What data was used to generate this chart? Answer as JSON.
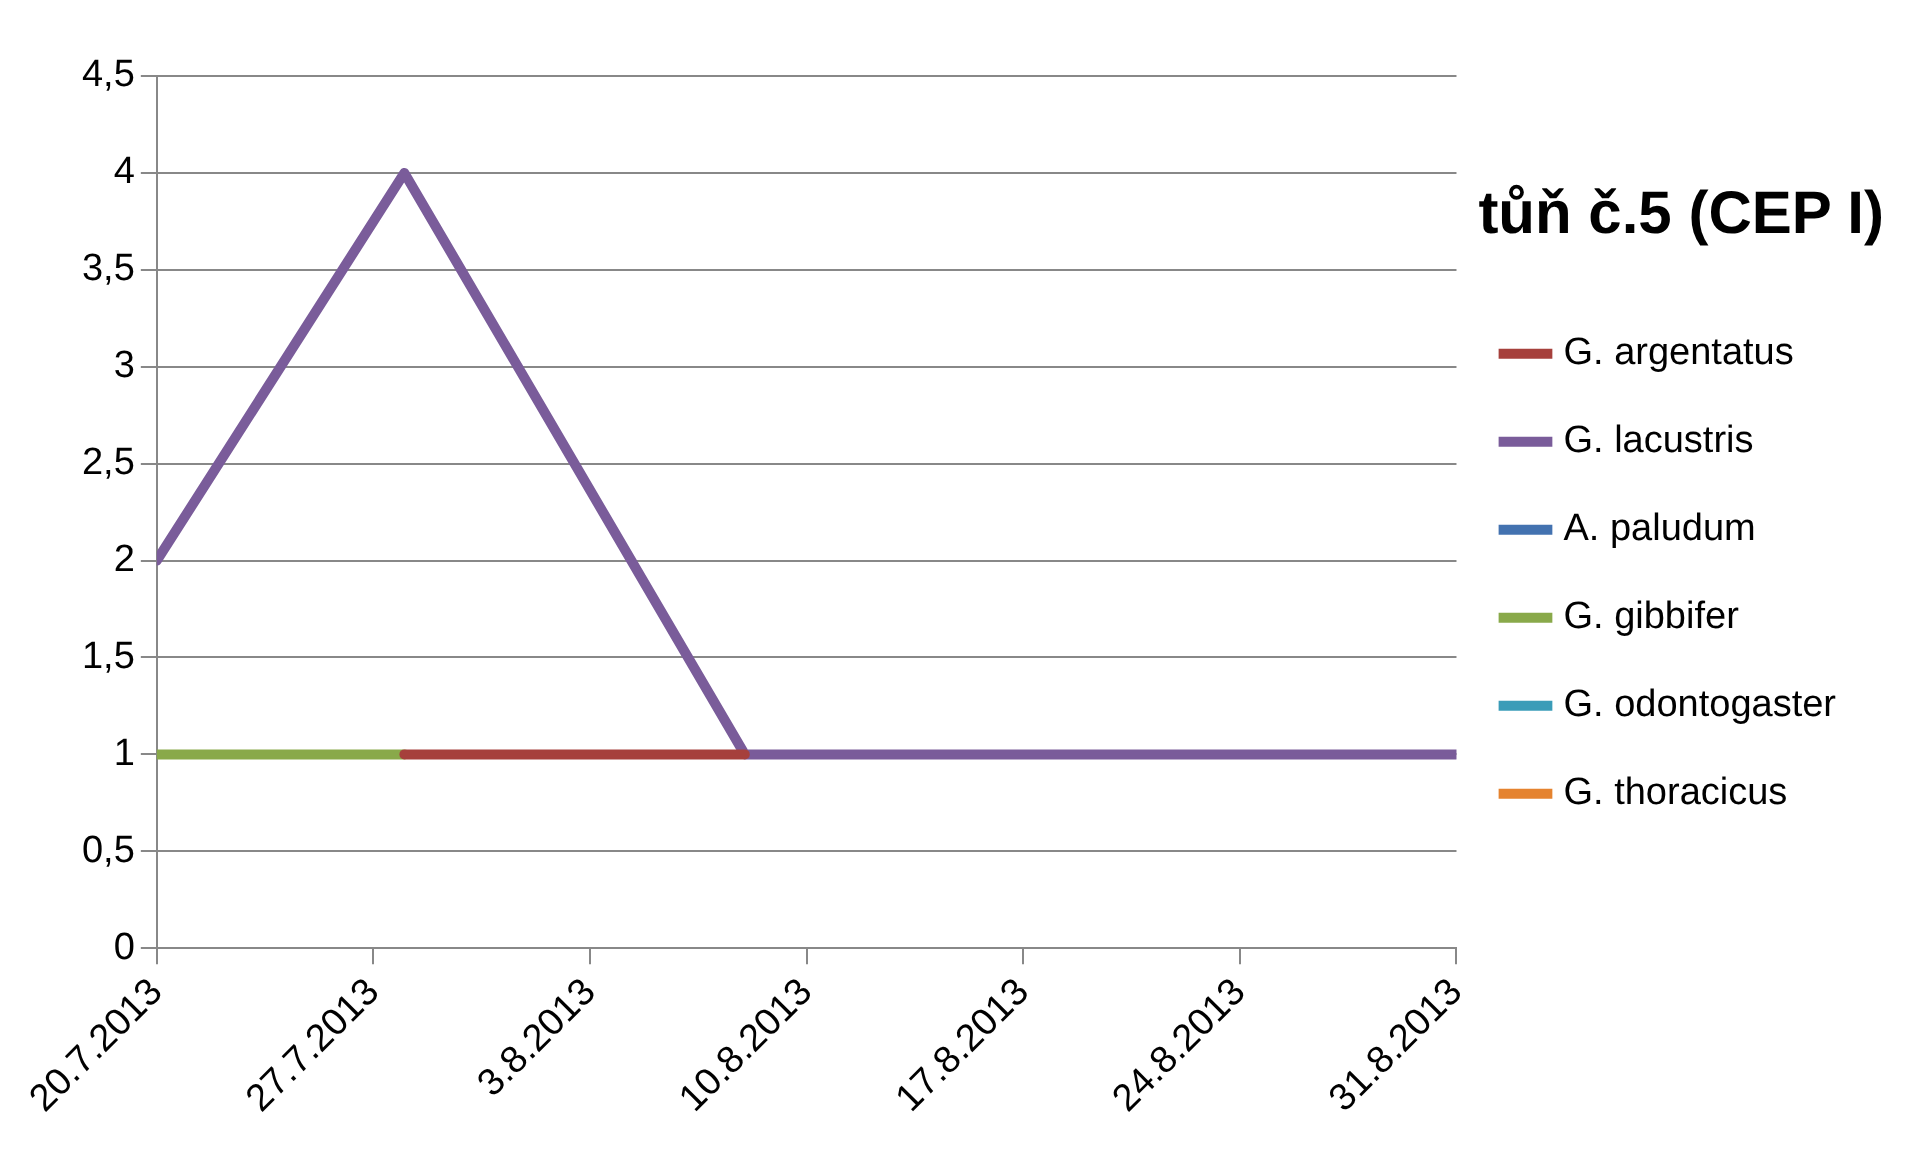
{
  "chart_data": {
    "type": "line",
    "title": "tůň č.5 (CEP I)",
    "x": [
      "2013-07-20",
      "2013-07-28",
      "2013-08-08",
      "2013-08-31"
    ],
    "series": [
      {
        "name": "G. argentatus",
        "color": "#a6403c",
        "values": [
          null,
          1,
          1,
          null
        ]
      },
      {
        "name": "G. lacustris",
        "color": "#7a5c9a",
        "values": [
          2,
          4,
          1,
          1
        ]
      },
      {
        "name": "A. paludum",
        "color": "#4372b0",
        "values": [
          null,
          null,
          null,
          null
        ]
      },
      {
        "name": "G. gibbifer",
        "color": "#89a94a",
        "values": [
          1,
          1,
          null,
          null
        ]
      },
      {
        "name": "G. odontogaster",
        "color": "#3a9cb8",
        "values": [
          null,
          null,
          null,
          null
        ]
      },
      {
        "name": "G. thoracicus",
        "color": "#e5832f",
        "values": [
          null,
          null,
          null,
          null
        ]
      }
    ],
    "xlim": [
      "2013-07-20",
      "2013-08-31"
    ],
    "xticks": [
      {
        "value": "2013-07-20",
        "label": "20.7.2013"
      },
      {
        "value": "2013-07-27",
        "label": "27.7.2013"
      },
      {
        "value": "2013-08-03",
        "label": "3.8.2013"
      },
      {
        "value": "2013-08-10",
        "label": "10.8.2013"
      },
      {
        "value": "2013-08-17",
        "label": "17.8.2013"
      },
      {
        "value": "2013-08-24",
        "label": "24.8.2013"
      },
      {
        "value": "2013-08-31",
        "label": "31.8.2013"
      }
    ],
    "ylim": [
      0,
      4.5
    ],
    "yticks": [
      {
        "value": 0,
        "label": "0"
      },
      {
        "value": 0.5,
        "label": "0,5"
      },
      {
        "value": 1,
        "label": "1"
      },
      {
        "value": 1.5,
        "label": "1,5"
      },
      {
        "value": 2,
        "label": "2"
      },
      {
        "value": 2.5,
        "label": "2,5"
      },
      {
        "value": 3,
        "label": "3"
      },
      {
        "value": 3.5,
        "label": "3,5"
      },
      {
        "value": 4,
        "label": "4"
      },
      {
        "value": 4.5,
        "label": "4,5"
      }
    ],
    "grid": "y",
    "legend": "right",
    "marker": "none",
    "line_style": "solid"
  }
}
